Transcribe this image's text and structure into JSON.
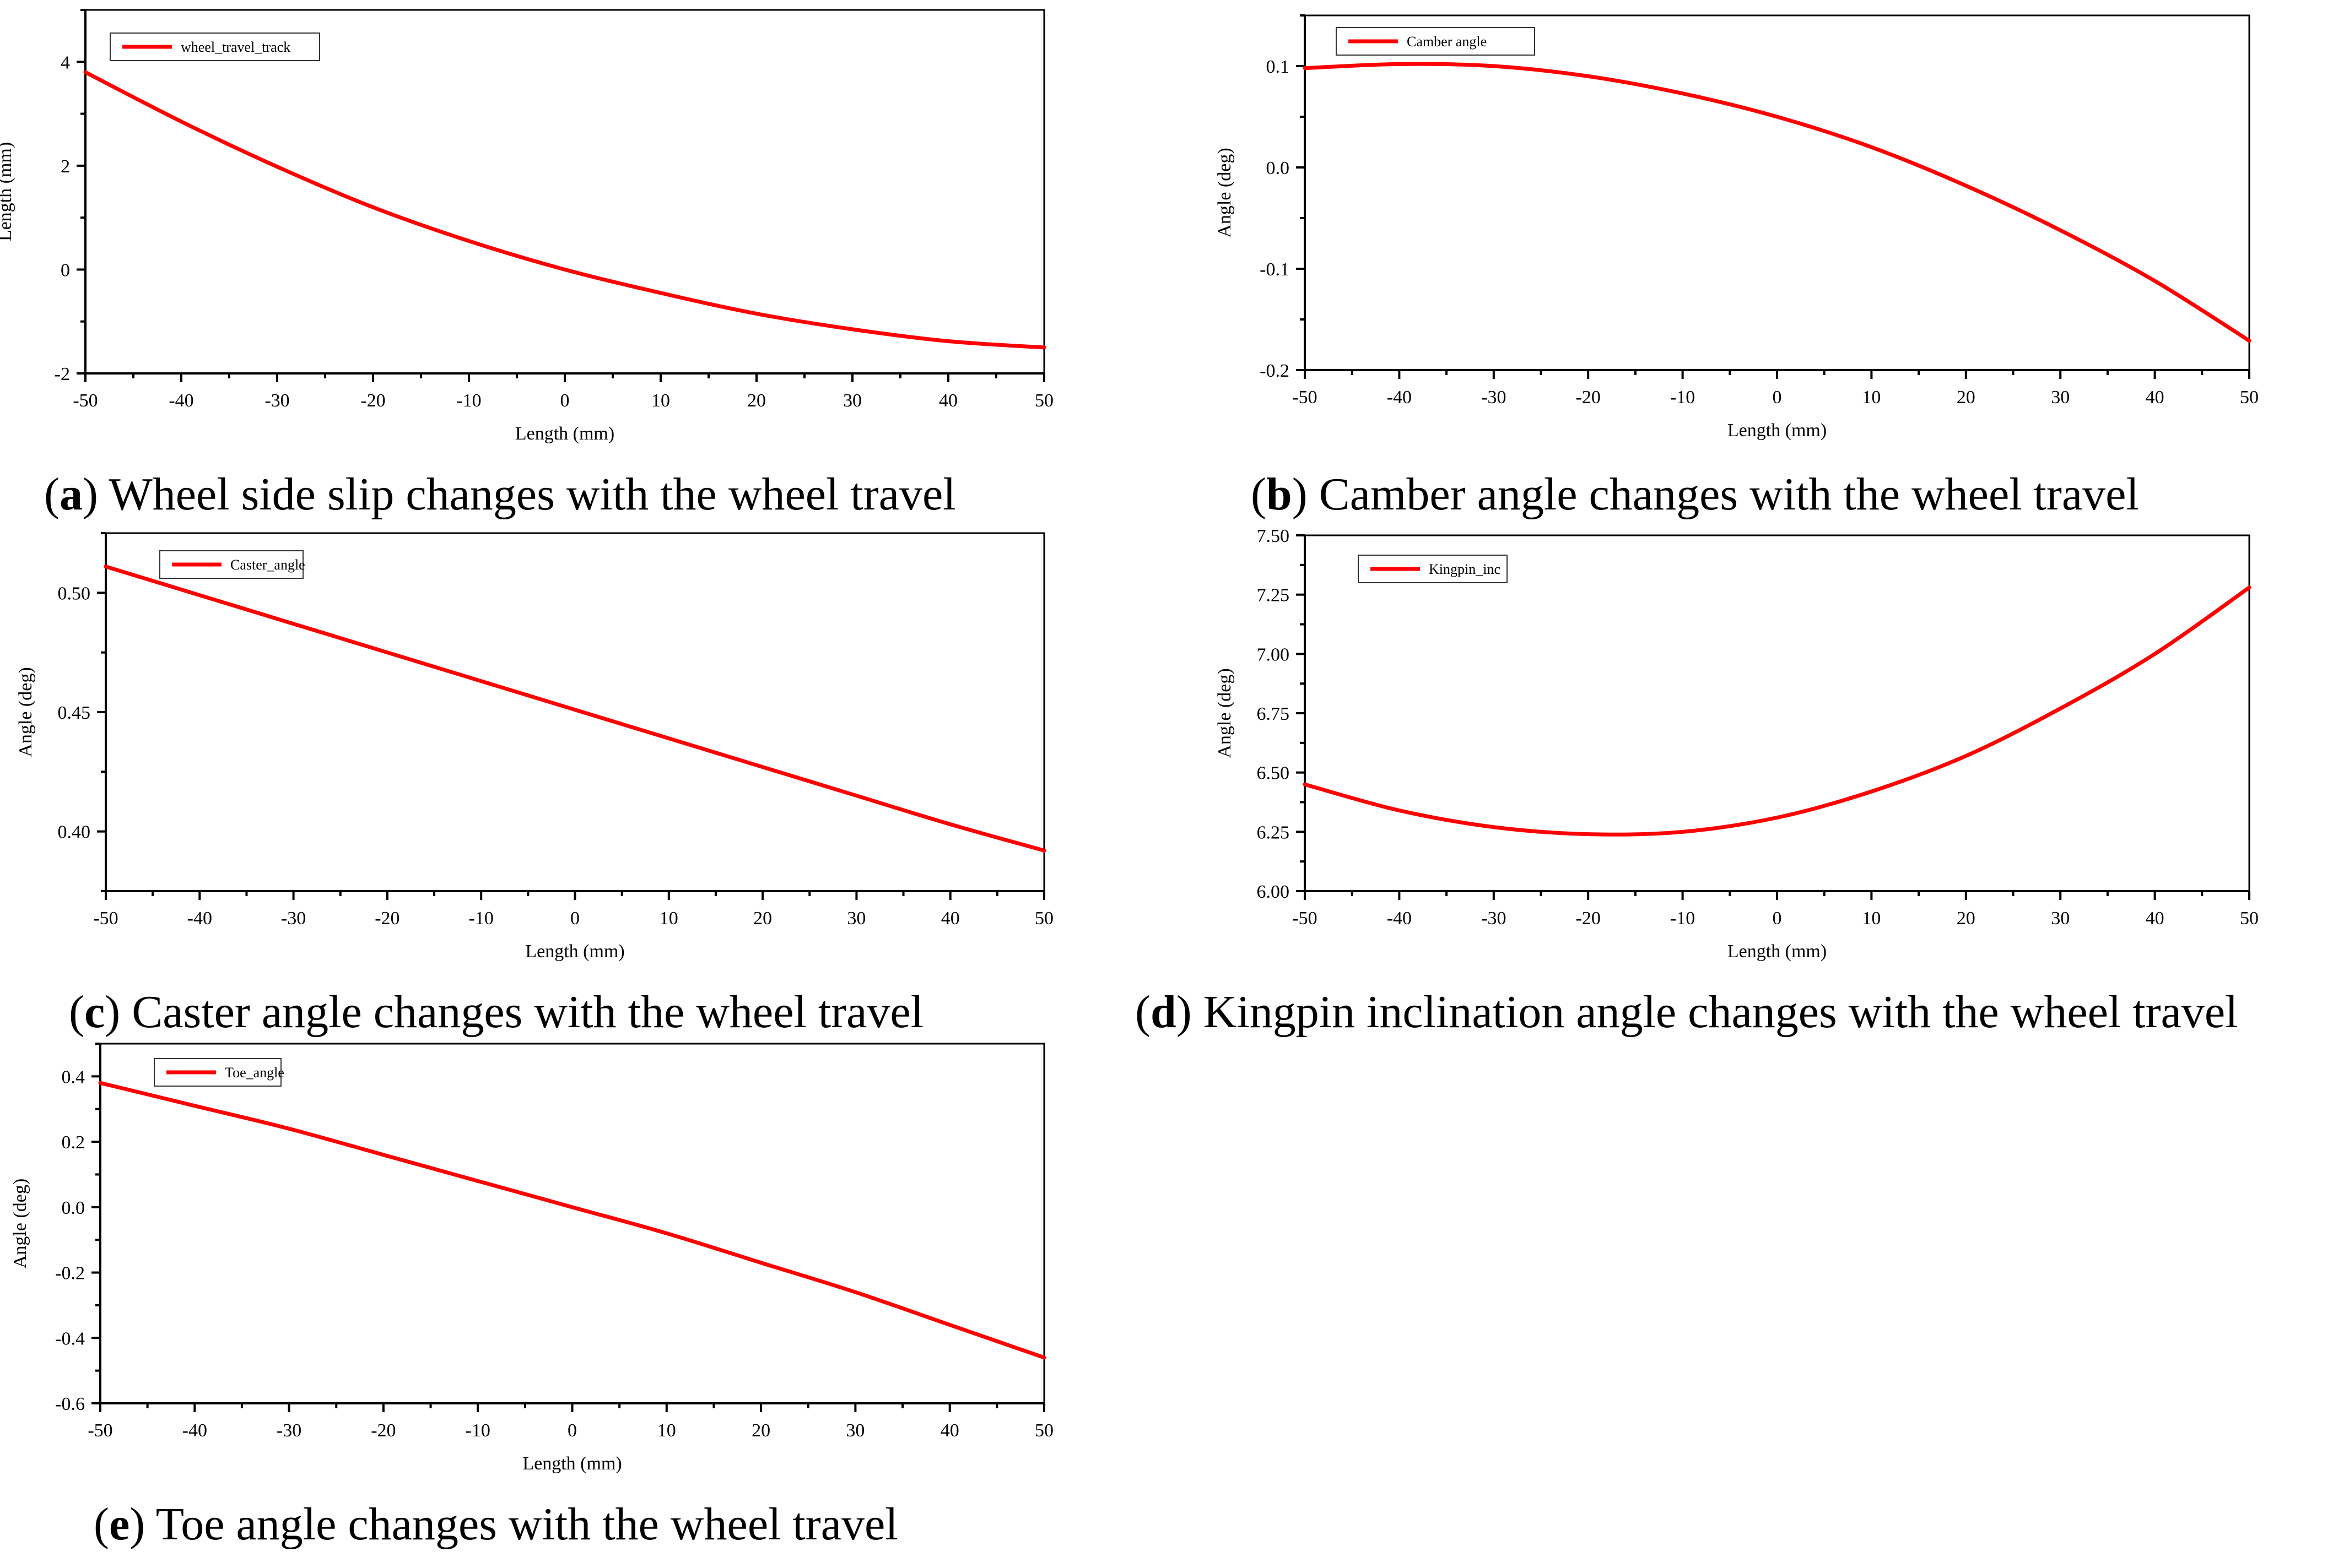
{
  "colors": {
    "series": "#ff0000",
    "axis": "#000000"
  },
  "chart_data": [
    {
      "type": "line",
      "id": "a",
      "caption_letter": "a",
      "caption_text": "Wheel side slip changes with the wheel travel",
      "xlabel": "Length (mm)",
      "ylabel": "Length (mm)",
      "legend": "wheel_travel_track",
      "xlim": [
        -50,
        50
      ],
      "ylim": [
        -2,
        5
      ],
      "xticks": [
        -50,
        -40,
        -30,
        -20,
        -10,
        0,
        10,
        20,
        30,
        40,
        50
      ],
      "yticks": [
        -2,
        0,
        2,
        4
      ],
      "ytick_labels": [
        "-2",
        "0",
        "2",
        "4"
      ],
      "x": [
        -50,
        -40,
        -30,
        -20,
        -10,
        0,
        10,
        20,
        30,
        40,
        50
      ],
      "y": [
        3.8,
        2.85,
        1.98,
        1.2,
        0.55,
        0.0,
        -0.45,
        -0.85,
        -1.15,
        -1.38,
        -1.5
      ]
    },
    {
      "type": "line",
      "id": "b",
      "caption_letter": "b",
      "caption_text": "Camber angle changes with the wheel travel",
      "xlabel": "Length (mm)",
      "ylabel": "Angle (deg)",
      "legend": "Camber angle",
      "xlim": [
        -50,
        50
      ],
      "ylim": [
        -0.2,
        0.15
      ],
      "xticks": [
        -50,
        -40,
        -30,
        -20,
        -10,
        0,
        10,
        20,
        30,
        40,
        50
      ],
      "yticks": [
        -0.2,
        -0.1,
        0.0,
        0.1
      ],
      "ytick_labels": [
        "-0.2",
        "-0.1",
        "0.0",
        "0.1"
      ],
      "x": [
        -50,
        -40,
        -30,
        -20,
        -10,
        0,
        10,
        20,
        30,
        40,
        50
      ],
      "y": [
        0.098,
        0.102,
        0.1,
        0.09,
        0.073,
        0.05,
        0.02,
        -0.018,
        -0.062,
        -0.112,
        -0.171
      ]
    },
    {
      "type": "line",
      "id": "c",
      "caption_letter": "c",
      "caption_text": "Caster angle changes with the wheel travel",
      "xlabel": "Length (mm)",
      "ylabel": "Angle (deg)",
      "legend": "Caster_angle",
      "xlim": [
        -50,
        50
      ],
      "ylim": [
        0.375,
        0.525
      ],
      "xticks": [
        -50,
        -40,
        -30,
        -20,
        -10,
        0,
        10,
        20,
        30,
        40,
        50
      ],
      "yticks": [
        0.4,
        0.45,
        0.5
      ],
      "ytick_labels": [
        "0.40",
        "0.45",
        "0.50"
      ],
      "x": [
        -50,
        -40,
        -30,
        -20,
        -10,
        0,
        10,
        20,
        30,
        40,
        50
      ],
      "y": [
        0.511,
        0.499,
        0.487,
        0.475,
        0.463,
        0.451,
        0.439,
        0.427,
        0.415,
        0.403,
        0.392
      ]
    },
    {
      "type": "line",
      "id": "d",
      "caption_letter": "d",
      "caption_text": "Kingpin inclination angle changes with the wheel travel",
      "xlabel": "Length (mm)",
      "ylabel": "Angle (deg)",
      "legend": "Kingpin_inc",
      "xlim": [
        -50,
        50
      ],
      "ylim": [
        6.0,
        7.5
      ],
      "xticks": [
        -50,
        -40,
        -30,
        -20,
        -10,
        0,
        10,
        20,
        30,
        40,
        50
      ],
      "yticks": [
        6.0,
        6.25,
        6.5,
        6.75,
        7.0,
        7.25,
        7.5
      ],
      "ytick_labels": [
        "6.00",
        "6.25",
        "6.50",
        "6.75",
        "7.00",
        "7.25",
        "7.50"
      ],
      "x": [
        -50,
        -40,
        -30,
        -20,
        -10,
        0,
        10,
        20,
        30,
        40,
        50
      ],
      "y": [
        6.45,
        6.34,
        6.27,
        6.24,
        6.25,
        6.31,
        6.42,
        6.57,
        6.77,
        7.0,
        7.28
      ]
    },
    {
      "type": "line",
      "id": "e",
      "caption_letter": "e",
      "caption_text": "Toe angle changes with the wheel travel",
      "xlabel": "Length (mm)",
      "ylabel": "Angle (deg)",
      "legend": "Toe_angle",
      "xlim": [
        -50,
        50
      ],
      "ylim": [
        -0.6,
        0.5
      ],
      "xticks": [
        -50,
        -40,
        -30,
        -20,
        -10,
        0,
        10,
        20,
        30,
        40,
        50
      ],
      "yticks": [
        -0.6,
        -0.4,
        -0.2,
        0.0,
        0.2,
        0.4
      ],
      "ytick_labels": [
        "-0.6",
        "-0.4",
        "-0.2",
        "0.0",
        "0.2",
        "0.4"
      ],
      "x": [
        -50,
        -40,
        -30,
        -20,
        -10,
        0,
        10,
        20,
        30,
        40,
        50
      ],
      "y": [
        0.38,
        0.31,
        0.24,
        0.16,
        0.08,
        0.0,
        -0.08,
        -0.17,
        -0.26,
        -0.36,
        -0.46
      ]
    }
  ]
}
